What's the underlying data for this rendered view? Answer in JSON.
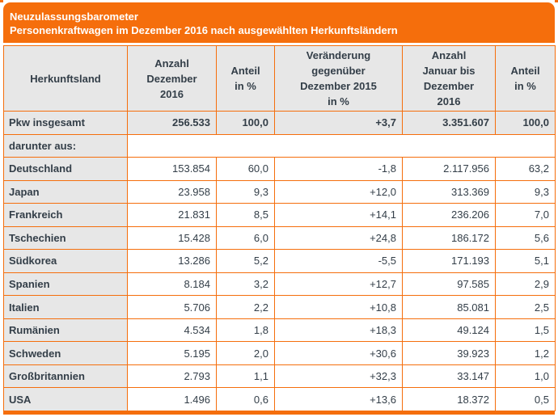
{
  "colors": {
    "accent": "#F56E0C",
    "cell_gray": "#E7E7E7",
    "text": "#333E48",
    "header_text": "#FFFFFF"
  },
  "header": {
    "title": "Neuzulassungsbarometer",
    "subtitle": "Personenkraftwagen im Dezember 2016 nach ausgewählten Herkunftsländern"
  },
  "table": {
    "columns": [
      "Herkunftsland",
      "Anzahl\nDezember\n2016",
      "Anteil\nin %",
      "Veränderung\ngegenüber\nDezember 2015\nin %",
      "Anzahl\nJanuar bis\nDezember\n2016",
      "Anteil\nin %"
    ],
    "total_row": {
      "cells": [
        "Pkw insgesamt",
        "256.533",
        "100,0",
        "+3,7",
        "3.351.607",
        "100,0"
      ]
    },
    "section_row": {
      "label": "darunter aus:"
    },
    "rows": [
      {
        "cells": [
          "Deutschland",
          "153.854",
          "60,0",
          "-1,8",
          "2.117.956",
          "63,2"
        ]
      },
      {
        "cells": [
          "Japan",
          "23.958",
          "9,3",
          "+12,0",
          "313.369",
          "9,3"
        ]
      },
      {
        "cells": [
          "Frankreich",
          "21.831",
          "8,5",
          "+14,1",
          "236.206",
          "7,0"
        ]
      },
      {
        "cells": [
          "Tschechien",
          "15.428",
          "6,0",
          "+24,8",
          "186.172",
          "5,6"
        ]
      },
      {
        "cells": [
          "Südkorea",
          "13.286",
          "5,2",
          "-5,5",
          "171.193",
          "5,1"
        ]
      },
      {
        "cells": [
          "Spanien",
          "8.184",
          "3,2",
          "+12,7",
          "97.585",
          "2,9"
        ]
      },
      {
        "cells": [
          "Italien",
          "5.706",
          "2,2",
          "+10,8",
          "85.081",
          "2,5"
        ]
      },
      {
        "cells": [
          "Rumänien",
          "4.534",
          "1,8",
          "+18,3",
          "49.124",
          "1,5"
        ]
      },
      {
        "cells": [
          "Schweden",
          "5.195",
          "2,0",
          "+30,6",
          "39.923",
          "1,2"
        ]
      },
      {
        "cells": [
          "Großbritannien",
          "2.793",
          "1,1",
          "+32,3",
          "33.147",
          "1,0"
        ]
      },
      {
        "cells": [
          "USA",
          "1.496",
          "0,6",
          "+13,6",
          "18.372",
          "0,5"
        ]
      }
    ]
  }
}
